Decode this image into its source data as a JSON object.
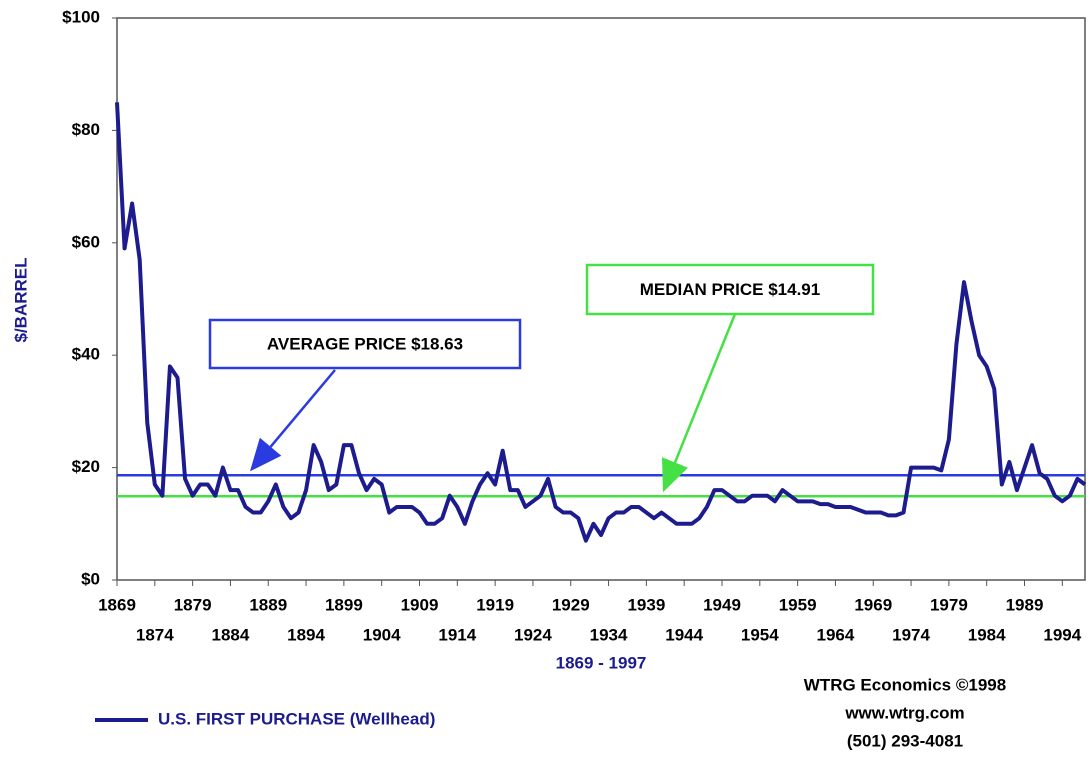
{
  "chart_data": {
    "type": "line",
    "y_label": "$/BARREL",
    "x_label": "1869 - 1997",
    "credit": [
      "WTRG Economics  ©1998",
      "www.wtrg.com",
      "(501) 293-4081"
    ],
    "xlim": [
      1869,
      1997
    ],
    "xticks": [
      1869,
      1874,
      1879,
      1884,
      1889,
      1894,
      1899,
      1904,
      1909,
      1914,
      1919,
      1924,
      1929,
      1934,
      1939,
      1944,
      1949,
      1954,
      1959,
      1964,
      1969,
      1974,
      1979,
      1984,
      1989,
      1994
    ],
    "ylim": [
      0,
      100
    ],
    "yticks": [
      {
        "value": 0,
        "label": "$0"
      },
      {
        "value": 20,
        "label": "$20"
      },
      {
        "value": 40,
        "label": "$40"
      },
      {
        "value": 60,
        "label": "$60"
      },
      {
        "value": 80,
        "label": "$80"
      },
      {
        "value": 100,
        "label": "$100"
      }
    ],
    "x": [
      1869,
      1870,
      1871,
      1872,
      1873,
      1874,
      1875,
      1876,
      1877,
      1878,
      1879,
      1880,
      1881,
      1882,
      1883,
      1884,
      1885,
      1886,
      1887,
      1888,
      1889,
      1890,
      1891,
      1892,
      1893,
      1894,
      1895,
      1896,
      1897,
      1898,
      1899,
      1900,
      1901,
      1902,
      1903,
      1904,
      1905,
      1906,
      1907,
      1908,
      1909,
      1910,
      1911,
      1912,
      1913,
      1914,
      1915,
      1916,
      1917,
      1918,
      1919,
      1920,
      1921,
      1922,
      1923,
      1924,
      1925,
      1926,
      1927,
      1928,
      1929,
      1930,
      1931,
      1932,
      1933,
      1934,
      1935,
      1936,
      1937,
      1938,
      1939,
      1940,
      1941,
      1942,
      1943,
      1944,
      1945,
      1946,
      1947,
      1948,
      1949,
      1950,
      1951,
      1952,
      1953,
      1954,
      1955,
      1956,
      1957,
      1958,
      1959,
      1960,
      1961,
      1962,
      1963,
      1964,
      1965,
      1966,
      1967,
      1968,
      1969,
      1970,
      1971,
      1972,
      1973,
      1974,
      1975,
      1976,
      1977,
      1978,
      1979,
      1980,
      1981,
      1982,
      1983,
      1984,
      1985,
      1986,
      1987,
      1988,
      1989,
      1990,
      1991,
      1992,
      1993,
      1994,
      1995,
      1996,
      1997
    ],
    "series": [
      {
        "name": "U.S. FIRST PURCHASE (Wellhead)",
        "color": "#1c1c8e",
        "values": [
          85,
          59,
          67,
          57,
          28,
          17,
          15,
          38,
          36,
          18,
          15,
          17,
          17,
          15,
          20,
          16,
          16,
          13,
          12,
          12,
          14,
          17,
          13,
          11,
          12,
          16,
          24,
          21,
          16,
          17,
          24,
          24,
          19,
          16,
          18,
          17,
          12,
          13,
          13,
          13,
          12,
          10,
          10,
          11,
          15,
          13,
          10,
          14,
          17,
          19,
          17,
          23,
          16,
          16,
          13,
          14,
          15,
          18,
          13,
          12,
          12,
          11,
          7,
          10,
          8,
          11,
          12,
          12,
          13,
          13,
          12,
          11,
          12,
          11,
          10,
          10,
          10,
          11,
          13,
          16,
          16,
          15,
          14,
          14,
          15,
          15,
          15,
          14,
          16,
          15,
          14,
          14,
          14,
          13.5,
          13.5,
          13,
          13,
          13,
          12.5,
          12,
          12,
          12,
          11.5,
          11.5,
          12,
          20,
          20,
          20,
          20,
          19.5,
          25,
          42,
          53,
          46,
          40,
          38,
          34,
          17,
          21,
          16,
          20,
          24,
          19,
          18,
          15,
          14,
          15,
          18,
          17
        ]
      }
    ],
    "reference_lines": [
      {
        "label": "AVERAGE PRICE  $18.63",
        "value": 18.63,
        "color": "#2a3ce0"
      },
      {
        "label": "MEDIAN PRICE  $14.91",
        "value": 14.91,
        "color": "#44e044"
      }
    ]
  }
}
